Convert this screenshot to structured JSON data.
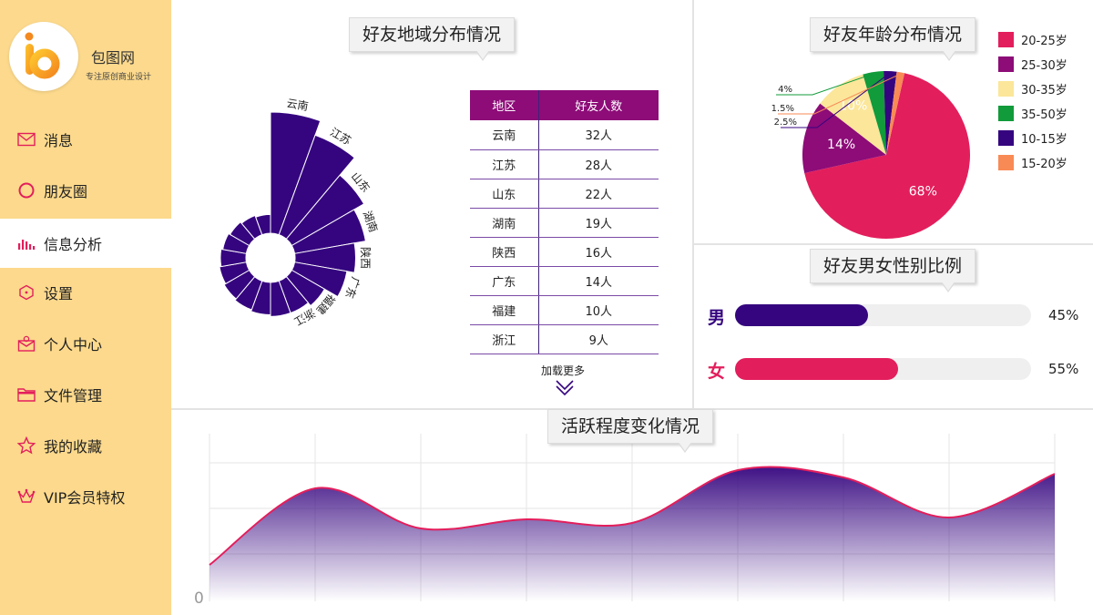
{
  "brand": {
    "name": "包图网",
    "slogan": "专注原创商业设计"
  },
  "nav": [
    {
      "label": "消息",
      "icon": "mail-icon"
    },
    {
      "label": "朋友圈",
      "icon": "circle-icon"
    },
    {
      "label": "信息分析",
      "icon": "bar-chart-icon",
      "active": true
    },
    {
      "label": "设置",
      "icon": "hexagon-icon"
    },
    {
      "label": "个人中心",
      "icon": "user-mail-icon"
    },
    {
      "label": "文件管理",
      "icon": "folder-icon"
    },
    {
      "label": "我的收藏",
      "icon": "star-icon"
    },
    {
      "label": "VIP会员特权",
      "icon": "crown-icon"
    }
  ],
  "region": {
    "title": "好友地域分布情况",
    "table_headers": [
      "地区",
      "好友人数"
    ],
    "rows": [
      [
        "云南",
        "32人"
      ],
      [
        "江苏",
        "28人"
      ],
      [
        "山东",
        "22人"
      ],
      [
        "湖南",
        "19人"
      ],
      [
        "陕西",
        "16人"
      ],
      [
        "广东",
        "14人"
      ],
      [
        "福建",
        "10人"
      ],
      [
        "浙江",
        "9人"
      ]
    ],
    "load_more": "加载更多"
  },
  "age": {
    "title": "好友年龄分布情况"
  },
  "gender": {
    "title": "好友男女性别比例",
    "male_label": "男",
    "female_label": "女",
    "male_pct": "45%",
    "female_pct": "55%",
    "male_value": 45,
    "female_value": 55,
    "male_color": "#35057f",
    "female_color": "#e31e5c"
  },
  "activity": {
    "title": "活跃程度变化情况",
    "y_zero": "0"
  },
  "chart_data": [
    {
      "type": "bar",
      "subtype": "polar-rose",
      "categories": [
        "云南",
        "江苏",
        "山东",
        "湖南",
        "陕西",
        "广东",
        "福建",
        "浙江"
      ],
      "values": [
        32,
        28,
        22,
        19,
        16,
        14,
        10,
        9
      ],
      "color": "#35057f"
    },
    {
      "type": "pie",
      "labels": [
        "20-25岁",
        "25-30岁",
        "30-35岁",
        "35-50岁",
        "10-15岁",
        "15-20岁"
      ],
      "values": [
        68,
        14,
        10,
        4,
        2.5,
        1.5
      ],
      "value_labels": [
        "68%",
        "14%",
        "10%",
        "4%",
        "2.5%",
        "1.5%"
      ],
      "colors": [
        "#e31e5c",
        "#8d0c78",
        "#fbe69a",
        "#119b3a",
        "#35057f",
        "#f88a55"
      ],
      "legend_position": "right"
    },
    {
      "type": "area",
      "values": [
        20,
        62,
        40,
        45,
        43,
        72,
        68,
        46,
        70
      ],
      "ylim": [
        0,
        100
      ],
      "grid": true,
      "line_color": "#e31e5c",
      "fill_color": "#35057f"
    }
  ]
}
